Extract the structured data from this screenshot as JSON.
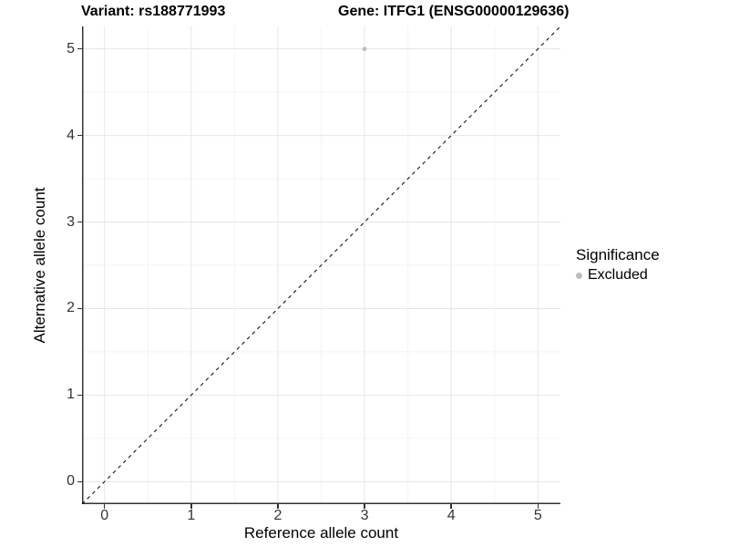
{
  "titles": {
    "variant": "Variant: rs188771993",
    "gene": "Gene: ITFG1 (ENSG00000129636)"
  },
  "chart_data": {
    "type": "scatter",
    "title_left": "Variant: rs188771993",
    "title_right": "Gene: ITFG1 (ENSG00000129636)",
    "xlabel": "Reference allele count",
    "ylabel": "Alternative allele count",
    "xlim": [
      -0.26,
      5.26
    ],
    "ylim": [
      -0.26,
      5.26
    ],
    "x_ticks": [
      0,
      1,
      2,
      3,
      4,
      5
    ],
    "y_ticks": [
      0,
      1,
      2,
      3,
      4,
      5
    ],
    "x_minor": [
      0.5,
      1.5,
      2.5,
      3.5,
      4.5
    ],
    "y_minor": [
      0.5,
      1.5,
      2.5,
      3.5,
      4.5
    ],
    "grid": true,
    "legend_position": "right",
    "points": [
      {
        "x": 3,
        "y": 5,
        "series": "Excluded",
        "color": "#bdbdbd",
        "radius": 2.4
      }
    ],
    "reference_line": {
      "slope": 1,
      "intercept": 0,
      "style": "dashed",
      "color": "#000000"
    },
    "legend": {
      "title": "Significance",
      "items": [
        {
          "label": "Excluded",
          "color": "#bdbdbd",
          "marker": "circle"
        }
      ]
    },
    "colors": {
      "grid_major": "#e6e6e6",
      "grid_minor": "#f3f3f3",
      "axis_line": "#333333",
      "tick_text": "#333333"
    }
  }
}
